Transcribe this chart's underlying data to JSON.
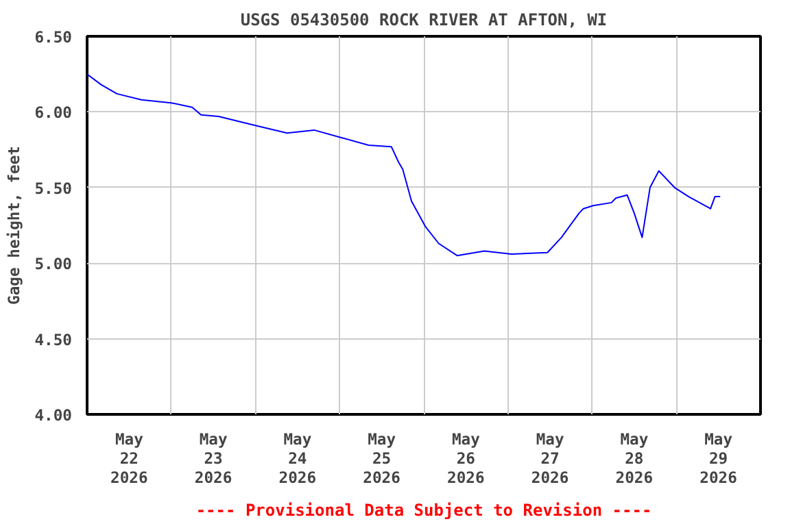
{
  "chart_data": {
    "type": "line",
    "title": "USGS 05430500 ROCK RIVER AT AFTON, WI",
    "ylabel": "Gage height, feet",
    "x": [
      "2026-05-22T00:00",
      "2026-05-22T04:00",
      "2026-05-22T08:30",
      "2026-05-22T15:30",
      "2026-05-23T00:00",
      "2026-05-23T06:00",
      "2026-05-23T08:30",
      "2026-05-23T13:30",
      "2026-05-24T00:00",
      "2026-05-24T09:00",
      "2026-05-24T16:45",
      "2026-05-25T00:30",
      "2026-05-25T08:15",
      "2026-05-25T14:45",
      "2026-05-25T16:45",
      "2026-05-25T18:00",
      "2026-05-25T20:30",
      "2026-05-26T00:30",
      "2026-05-26T04:15",
      "2026-05-26T09:30",
      "2026-05-26T17:15",
      "2026-05-27T01:00",
      "2026-05-27T11:15",
      "2026-05-27T15:15",
      "2026-05-27T20:15",
      "2026-05-27T21:30",
      "2026-05-28T00:15",
      "2026-05-28T05:30",
      "2026-05-28T06:45",
      "2026-05-28T10:00",
      "2026-05-28T12:00",
      "2026-05-28T14:15",
      "2026-05-28T16:30",
      "2026-05-28T19:00",
      "2026-05-28T23:30",
      "2026-05-29T03:30",
      "2026-05-29T09:45",
      "2026-05-29T11:00",
      "2026-05-29T12:30"
    ],
    "series": [
      {
        "color": "#0000ff",
        "values": [
          6.25,
          6.18,
          6.12,
          6.08,
          6.06,
          6.03,
          5.98,
          5.97,
          5.91,
          5.86,
          5.88,
          5.83,
          5.78,
          5.77,
          5.67,
          5.62,
          5.41,
          5.24,
          5.13,
          5.05,
          5.08,
          5.06,
          5.07,
          5.17,
          5.33,
          5.36,
          5.38,
          5.4,
          5.43,
          5.45,
          5.33,
          5.17,
          5.5,
          5.61,
          5.5,
          5.44,
          5.36,
          5.44,
          5.44
        ]
      }
    ],
    "xlim": [
      "2026-05-22T00:00",
      "2026-05-30T00:00"
    ],
    "xticks": [
      {
        "value": "2026-05-22T00:00",
        "label": null
      },
      {
        "value": "2026-05-22T12:00",
        "label": "May\n22\n2026"
      },
      {
        "value": "2026-05-23T00:00",
        "label": null
      },
      {
        "value": "2026-05-23T12:00",
        "label": "May\n23\n2026"
      },
      {
        "value": "2026-05-24T00:00",
        "label": null
      },
      {
        "value": "2026-05-24T12:00",
        "label": "May\n24\n2026"
      },
      {
        "value": "2026-05-25T00:00",
        "label": null
      },
      {
        "value": "2026-05-25T12:00",
        "label": "May\n25\n2026"
      },
      {
        "value": "2026-05-26T00:00",
        "label": null
      },
      {
        "value": "2026-05-26T12:00",
        "label": "May\n26\n2026"
      },
      {
        "value": "2026-05-27T00:00",
        "label": null
      },
      {
        "value": "2026-05-27T12:00",
        "label": "May\n27\n2026"
      },
      {
        "value": "2026-05-28T00:00",
        "label": null
      },
      {
        "value": "2026-05-28T12:00",
        "label": "May\n28\n2026"
      },
      {
        "value": "2026-05-29T00:00",
        "label": null
      },
      {
        "value": "2026-05-29T12:00",
        "label": "May\n29\n2026"
      },
      {
        "value": "2026-05-30T00:00",
        "label": null
      }
    ],
    "ylim": [
      4.0,
      6.5
    ],
    "yticks": [
      {
        "value": 4.0,
        "label": "4.00"
      },
      {
        "value": 4.5,
        "label": "4.50"
      },
      {
        "value": 5.0,
        "label": "5.00"
      },
      {
        "value": 5.5,
        "label": "5.50"
      },
      {
        "value": 6.0,
        "label": "6.00"
      },
      {
        "value": 6.5,
        "label": "6.50"
      }
    ],
    "grid": true,
    "line_style": "solid",
    "annotations": [
      "---- Provisional Data Subject to Revision ----"
    ]
  }
}
